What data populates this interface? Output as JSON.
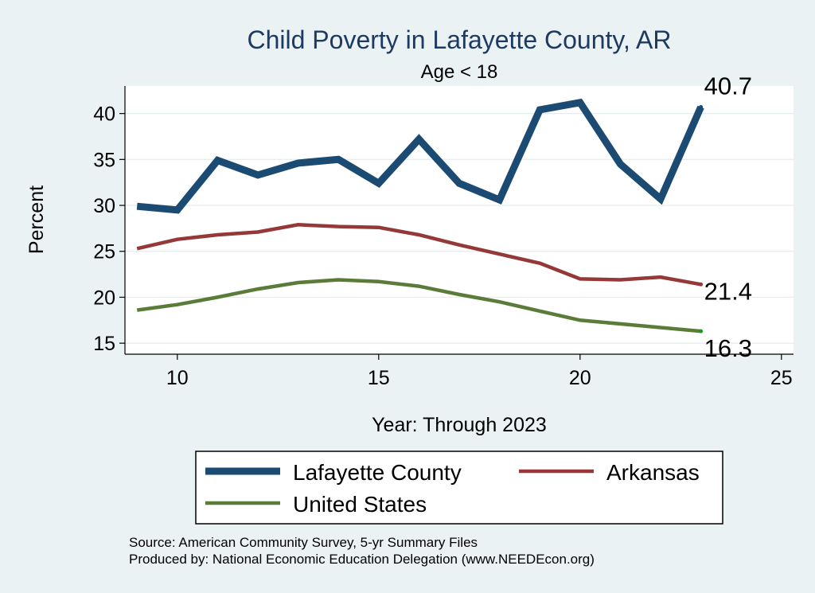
{
  "chart_data": {
    "type": "line",
    "title": "Child Poverty in Lafayette County, AR",
    "subtitle": "Age < 18",
    "xlabel": "Year: Through 2023",
    "ylabel": "Percent",
    "xlim": [
      8.7,
      25.3
    ],
    "ylim": [
      13.8,
      43.0
    ],
    "xticks": [
      "10",
      "15",
      "20",
      "25"
    ],
    "yticks": [
      "15",
      "20",
      "25",
      "30",
      "35",
      "40"
    ],
    "grid": true,
    "legend_position": "bottom",
    "series": [
      {
        "name": "Lafayette County",
        "color": "#1b4a72",
        "x": [
          9,
          10,
          11,
          12,
          13,
          14,
          15,
          16,
          17,
          18,
          19,
          20,
          21,
          22,
          23
        ],
        "values": [
          29.9,
          29.5,
          34.9,
          33.3,
          34.6,
          35.0,
          32.4,
          37.2,
          32.4,
          30.6,
          40.4,
          41.2,
          34.5,
          30.7,
          40.7
        ],
        "end_label": "40.7"
      },
      {
        "name": "Arkansas",
        "color": "#943838",
        "x": [
          9,
          10,
          11,
          12,
          13,
          14,
          15,
          16,
          17,
          18,
          19,
          20,
          21,
          22,
          23
        ],
        "values": [
          25.3,
          26.3,
          26.8,
          27.1,
          27.9,
          27.7,
          27.6,
          26.8,
          25.7,
          24.7,
          23.7,
          22.0,
          21.9,
          22.2,
          21.4
        ],
        "end_label": "21.4"
      },
      {
        "name": "United States",
        "color": "#5a7c38",
        "x": [
          9,
          10,
          11,
          12,
          13,
          14,
          15,
          16,
          17,
          18,
          19,
          20,
          21,
          22,
          23
        ],
        "values": [
          18.6,
          19.2,
          20.0,
          20.9,
          21.6,
          21.9,
          21.7,
          21.2,
          20.3,
          19.5,
          18.5,
          17.5,
          17.1,
          16.7,
          16.3
        ],
        "end_label": "16.3"
      }
    ]
  },
  "notes": {
    "source": "Source: American Community Survey, 5-yr Summary Files",
    "produced_by": "Produced by: National Economic Education Delegation (www.NEEDEcon.org)"
  }
}
